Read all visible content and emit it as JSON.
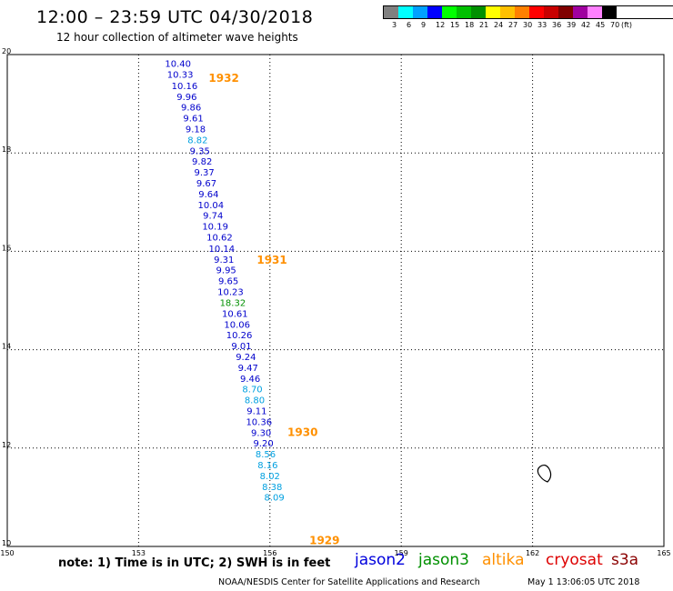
{
  "header": {
    "title": "12:00 – 23:59 UTC 04/30/2018",
    "subtitle": "12 hour collection of altimeter wave heights"
  },
  "color_scale": {
    "labels": [
      "3",
      "6",
      "9",
      "12",
      "15",
      "18",
      "21",
      "24",
      "27",
      "30",
      "33",
      "36",
      "39",
      "42",
      "45",
      "70",
      "(ft)"
    ],
    "colors": [
      "#808080",
      "#00ffff",
      "#00a0ff",
      "#0000ff",
      "#00ff00",
      "#00c000",
      "#009000",
      "#ffff00",
      "#ffc000",
      "#ff8000",
      "#ff0000",
      "#c80000",
      "#800000",
      "#a000a0",
      "#ff80ff",
      "#000000"
    ]
  },
  "map": {
    "lon_ticks": [
      "150",
      "153",
      "156",
      "159",
      "162",
      "165"
    ],
    "lat_ticks": [
      "20",
      "18",
      "16",
      "14",
      "12",
      "10"
    ],
    "passes": [
      {
        "label": "1932",
        "lon": 154.6,
        "lat": 19.45
      },
      {
        "label": "1931",
        "lon": 155.7,
        "lat": 15.75
      },
      {
        "label": "1930",
        "lon": 156.4,
        "lat": 12.25
      },
      {
        "label": "1929",
        "lon": 156.9,
        "lat": 10.05
      }
    ],
    "observations": [
      {
        "lon": 153.9,
        "lat": 19.75,
        "swh": "10.40",
        "color": "#0000cc"
      },
      {
        "lon": 153.95,
        "lat": 19.53,
        "swh": "10.33",
        "color": "#0000cc"
      },
      {
        "lon": 154.05,
        "lat": 19.3,
        "swh": "10.16",
        "color": "#0000cc"
      },
      {
        "lon": 154.1,
        "lat": 19.08,
        "swh": "9.96",
        "color": "#0000cc"
      },
      {
        "lon": 154.2,
        "lat": 18.86,
        "swh": "9.86",
        "color": "#0000cc"
      },
      {
        "lon": 154.25,
        "lat": 18.64,
        "swh": "9.61",
        "color": "#0000cc"
      },
      {
        "lon": 154.3,
        "lat": 18.42,
        "swh": "9.18",
        "color": "#0000cc"
      },
      {
        "lon": 154.35,
        "lat": 18.2,
        "swh": "8.82",
        "color": "#00a0e0"
      },
      {
        "lon": 154.4,
        "lat": 17.98,
        "swh": "9.35",
        "color": "#0000cc"
      },
      {
        "lon": 154.45,
        "lat": 17.76,
        "swh": "9.82",
        "color": "#0000cc"
      },
      {
        "lon": 154.5,
        "lat": 17.54,
        "swh": "9.37",
        "color": "#0000cc"
      },
      {
        "lon": 154.55,
        "lat": 17.32,
        "swh": "9.67",
        "color": "#0000cc"
      },
      {
        "lon": 154.6,
        "lat": 17.1,
        "swh": "9.64",
        "color": "#0000cc"
      },
      {
        "lon": 154.65,
        "lat": 16.88,
        "swh": "10.04",
        "color": "#0000cc"
      },
      {
        "lon": 154.7,
        "lat": 16.66,
        "swh": "9.74",
        "color": "#0000cc"
      },
      {
        "lon": 154.75,
        "lat": 16.44,
        "swh": "10.19",
        "color": "#0000cc"
      },
      {
        "lon": 154.85,
        "lat": 16.22,
        "swh": "10.62",
        "color": "#0000cc"
      },
      {
        "lon": 154.9,
        "lat": 15.99,
        "swh": "10.14",
        "color": "#0000cc"
      },
      {
        "lon": 154.95,
        "lat": 15.77,
        "swh": "9.31",
        "color": "#0000cc"
      },
      {
        "lon": 155.0,
        "lat": 15.55,
        "swh": "9.95",
        "color": "#0000cc"
      },
      {
        "lon": 155.05,
        "lat": 15.33,
        "swh": "9.65",
        "color": "#0000cc"
      },
      {
        "lon": 155.1,
        "lat": 15.11,
        "swh": "10.23",
        "color": "#0000cc"
      },
      {
        "lon": 155.15,
        "lat": 14.89,
        "swh": "18.32",
        "color": "#009000"
      },
      {
        "lon": 155.2,
        "lat": 14.67,
        "swh": "10.61",
        "color": "#0000cc"
      },
      {
        "lon": 155.25,
        "lat": 14.45,
        "swh": "10.06",
        "color": "#0000cc"
      },
      {
        "lon": 155.3,
        "lat": 14.23,
        "swh": "10.26",
        "color": "#0000cc"
      },
      {
        "lon": 155.35,
        "lat": 14.01,
        "swh": "9.01",
        "color": "#0000cc"
      },
      {
        "lon": 155.45,
        "lat": 13.79,
        "swh": "9.24",
        "color": "#0000cc"
      },
      {
        "lon": 155.5,
        "lat": 13.57,
        "swh": "9.47",
        "color": "#0000cc"
      },
      {
        "lon": 155.55,
        "lat": 13.35,
        "swh": "9.46",
        "color": "#0000cc"
      },
      {
        "lon": 155.6,
        "lat": 13.13,
        "swh": "8.70",
        "color": "#00a0e0"
      },
      {
        "lon": 155.65,
        "lat": 12.91,
        "swh": "8.80",
        "color": "#00a0e0"
      },
      {
        "lon": 155.7,
        "lat": 12.69,
        "swh": "9.11",
        "color": "#0000cc"
      },
      {
        "lon": 155.75,
        "lat": 12.47,
        "swh": "10.36",
        "color": "#0000cc"
      },
      {
        "lon": 155.8,
        "lat": 12.25,
        "swh": "9.30",
        "color": "#0000cc"
      },
      {
        "lon": 155.85,
        "lat": 12.03,
        "swh": "9.20",
        "color": "#0000cc"
      },
      {
        "lon": 155.9,
        "lat": 11.81,
        "swh": "8.56",
        "color": "#00a0e0"
      },
      {
        "lon": 155.95,
        "lat": 11.59,
        "swh": "8.16",
        "color": "#00a0e0"
      },
      {
        "lon": 156.0,
        "lat": 11.37,
        "swh": "8.02",
        "color": "#00a0e0"
      },
      {
        "lon": 156.05,
        "lat": 11.15,
        "swh": "8.38",
        "color": "#00a0e0"
      },
      {
        "lon": 156.1,
        "lat": 10.93,
        "swh": "8.09",
        "color": "#00a0e0"
      }
    ]
  },
  "footer": {
    "note": "note: 1) Time is in UTC; 2) SWH is in feet",
    "legend": [
      {
        "label": "jason2",
        "color": "#0000dd"
      },
      {
        "label": "jason3",
        "color": "#009000"
      },
      {
        "label": "altika",
        "color": "#ff9000"
      },
      {
        "label": "cryosat",
        "color": "#dd0000"
      },
      {
        "label": "s3a",
        "color": "#8b0000"
      }
    ],
    "credit": "NOAA/NESDIS Center for Satellite Applications and Research",
    "timestamp": "May  1 13:06:05 UTC 2018"
  }
}
